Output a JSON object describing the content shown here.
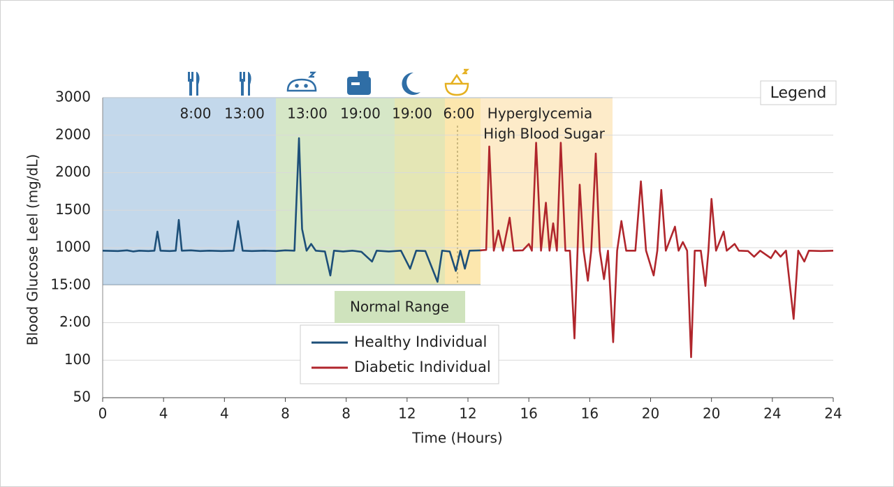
{
  "chart_data": {
    "type": "line",
    "y_label": "Blood  Glucose Leel (mg/dL)",
    "x_label": "Time (Hours)",
    "xlim": [
      0,
      24
    ],
    "xticks": [
      0,
      {
        "value": 2,
        "label": "4"
      },
      4,
      {
        "value": 6,
        "label": "8"
      },
      8,
      {
        "value": 10,
        "label": "12"
      },
      12,
      {
        "value": 14,
        "label": "16"
      },
      16,
      {
        "value": 18,
        "label": "20"
      },
      20,
      {
        "value": 22,
        "label": "24"
      },
      24
    ],
    "ylim": [
      -1000,
      3000
    ],
    "yticks": [
      {
        "value": -1000,
        "label": "50"
      },
      {
        "value": -500,
        "label": "100"
      },
      {
        "value": 0,
        "label": "2:00"
      },
      {
        "value": 500,
        "label": "15:00"
      },
      1000,
      1500,
      2000,
      {
        "value": 2500,
        "label": "2000"
      },
      3000
    ],
    "grid": true,
    "annotations": [
      "8:00",
      "13:00",
      "13:00",
      "19:00",
      "19:00",
      "6:00"
    ],
    "hyperglycemia_label": [
      "Hyperglycemia",
      "High Blood Sugar"
    ],
    "normal_range_label": "Normal Range",
    "legend_title": "Legend",
    "series": [
      {
        "name": "Healthy Individual",
        "color": "#1d4f78",
        "x": [
          0,
          0.5,
          0.8,
          1.0,
          1.2,
          1.5,
          1.7,
          1.8,
          1.9,
          2.2,
          2.4,
          2.5,
          2.6,
          2.9,
          3.2,
          3.5,
          3.9,
          4.3,
          4.45,
          4.6,
          4.9,
          5.3,
          5.7,
          6.0,
          6.3,
          6.45,
          6.55,
          6.7,
          6.85,
          7.0,
          7.3,
          7.48,
          7.6,
          7.9,
          8.2,
          8.5,
          8.85,
          9.0,
          9.4,
          9.8,
          10.1,
          10.3,
          10.6,
          11.0,
          11.15,
          11.4,
          11.6,
          11.75,
          11.9,
          12.05,
          12.45
        ],
        "values": [
          960,
          955,
          965,
          950,
          960,
          955,
          960,
          1215,
          960,
          955,
          960,
          1370,
          960,
          965,
          955,
          960,
          955,
          960,
          1355,
          960,
          955,
          960,
          955,
          965,
          960,
          2460,
          1250,
          960,
          1050,
          960,
          950,
          630,
          960,
          950,
          960,
          945,
          815,
          960,
          950,
          960,
          720,
          960,
          955,
          545,
          960,
          950,
          690,
          960,
          720,
          960,
          965
        ]
      },
      {
        "name": "Diabetic Individual",
        "color": "#b0262c",
        "x": [
          12.4,
          12.6,
          12.7,
          12.85,
          13.0,
          13.15,
          13.37,
          13.5,
          13.8,
          14.0,
          14.1,
          14.24,
          14.4,
          14.56,
          14.68,
          14.8,
          14.92,
          15.05,
          15.2,
          15.35,
          15.5,
          15.6,
          15.67,
          15.8,
          15.94,
          16.05,
          16.2,
          16.33,
          16.47,
          16.6,
          16.77,
          16.9,
          17.04,
          17.2,
          17.5,
          17.68,
          17.85,
          18.1,
          18.22,
          18.35,
          18.5,
          18.8,
          18.92,
          19.06,
          19.2,
          19.33,
          19.45,
          19.65,
          19.8,
          19.9,
          20.0,
          20.15,
          20.4,
          20.5,
          20.76,
          20.9,
          21.2,
          21.4,
          21.6,
          21.95,
          22.1,
          22.27,
          22.45,
          22.7,
          22.85,
          23.05,
          23.2,
          23.6,
          24
        ],
        "values": [
          965,
          970,
          2350,
          960,
          1230,
          960,
          1400,
          960,
          965,
          1050,
          960,
          2400,
          960,
          1600,
          960,
          1325,
          960,
          2400,
          960,
          960,
          -210,
          960,
          1840,
          960,
          560,
          960,
          2255,
          960,
          580,
          960,
          -260,
          960,
          1355,
          960,
          960,
          1885,
          960,
          630,
          960,
          1770,
          960,
          1280,
          960,
          1075,
          960,
          -460,
          960,
          960,
          490,
          960,
          1650,
          960,
          1215,
          960,
          1050,
          960,
          955,
          880,
          960,
          860,
          960,
          880,
          960,
          50,
          960,
          815,
          960,
          955,
          960
        ]
      }
    ]
  }
}
